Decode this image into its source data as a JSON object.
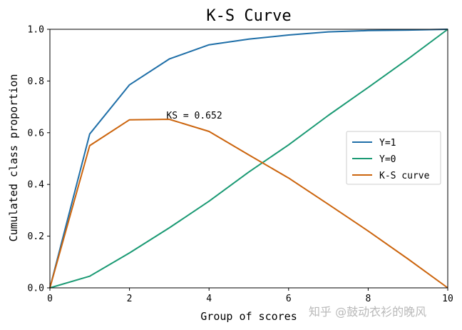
{
  "chart_data": {
    "type": "line",
    "title": "K-S Curve",
    "xlabel": "Group of scores",
    "ylabel": "Cumulated class proportion",
    "xlim": [
      0,
      10
    ],
    "ylim": [
      0,
      1.0
    ],
    "xticks": [
      "0",
      "2",
      "4",
      "6",
      "8",
      "10"
    ],
    "yticks": [
      "0.0",
      "0.2",
      "0.4",
      "0.6",
      "0.8",
      "1.0"
    ],
    "x": [
      0,
      1,
      2,
      3,
      4,
      5,
      6,
      7,
      8,
      9,
      10
    ],
    "series": [
      {
        "name": "Y=1",
        "color": "#1f6fa8",
        "values": [
          0.0,
          0.595,
          0.785,
          0.885,
          0.94,
          0.962,
          0.978,
          0.99,
          0.995,
          0.997,
          1.0
        ]
      },
      {
        "name": "Y=0",
        "color": "#1b9a74",
        "values": [
          0.0,
          0.045,
          0.135,
          0.232,
          0.335,
          0.448,
          0.553,
          0.667,
          0.775,
          0.885,
          1.0
        ]
      },
      {
        "name": "K-S curve",
        "color": "#cc650e",
        "values": [
          0.0,
          0.55,
          0.65,
          0.652,
          0.605,
          0.514,
          0.425,
          0.323,
          0.22,
          0.112,
          0.0
        ]
      }
    ],
    "annotation": {
      "text": "KS = 0.652",
      "x": 3,
      "y": 0.652
    },
    "legend_placement": "center-right",
    "grid": false
  },
  "watermark": "知乎 @鼓动衣衫的晚风"
}
